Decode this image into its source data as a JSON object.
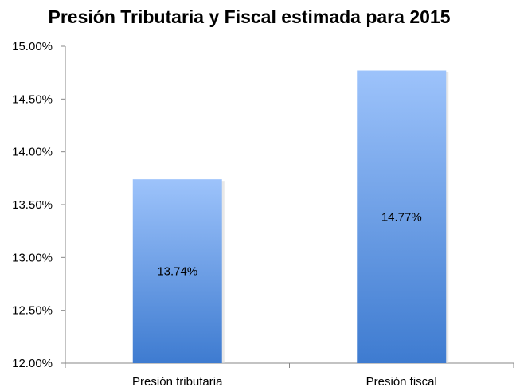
{
  "chart_data": {
    "type": "bar",
    "title": "Presión Tributaria y Fiscal estimada para 2015",
    "categories": [
      "Presión tributaria",
      "Presión fiscal"
    ],
    "values": [
      13.74,
      14.77
    ],
    "data_labels": [
      "13.74%",
      "14.77%"
    ],
    "ylim": [
      12.0,
      15.0
    ],
    "yticks": [
      12.0,
      12.5,
      13.0,
      13.5,
      14.0,
      14.5,
      15.0
    ],
    "ytick_labels": [
      "12.00%",
      "12.50%",
      "13.00%",
      "13.50%",
      "14.00%",
      "14.50%",
      "15.00%"
    ],
    "xlabel": "",
    "ylabel": "",
    "grid": false,
    "legend": "none",
    "colors": {
      "bar_top": "#9dc3fb",
      "bar_bottom": "#3e7bd0",
      "axis": "#878787"
    }
  }
}
